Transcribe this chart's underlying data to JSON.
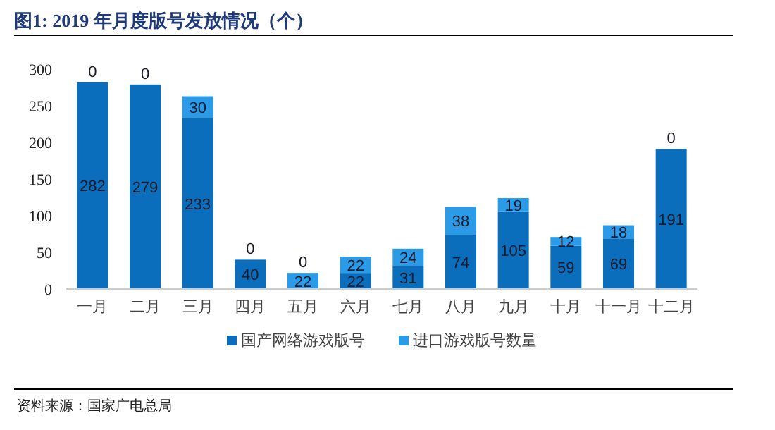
{
  "chart_data": {
    "type": "bar",
    "title": "图1:  2019 年月度版号发放情况（个）",
    "annotations": [
      "资料来源：国家广电总局"
    ],
    "categories": [
      "一月",
      "二月",
      "三月",
      "四月",
      "五月",
      "六月",
      "七月",
      "八月",
      "九月",
      "十月",
      "十一月",
      "十二月"
    ],
    "series": [
      {
        "name": "国产网络游戏版号",
        "color": "#0a6ebd",
        "values": [
          282,
          279,
          233,
          40,
          0,
          22,
          31,
          74,
          105,
          59,
          69,
          191
        ]
      },
      {
        "name": "进口游戏版号数量",
        "color": "#2b9be8",
        "values": [
          0,
          0,
          30,
          0,
          22,
          22,
          24,
          38,
          19,
          12,
          18,
          0
        ]
      }
    ],
    "stacked": true,
    "data_labels": true,
    "legend": "bottom",
    "grid": false,
    "ylim": [
      0,
      300
    ],
    "yticks": [
      0,
      50,
      100,
      150,
      200,
      250,
      300
    ]
  }
}
